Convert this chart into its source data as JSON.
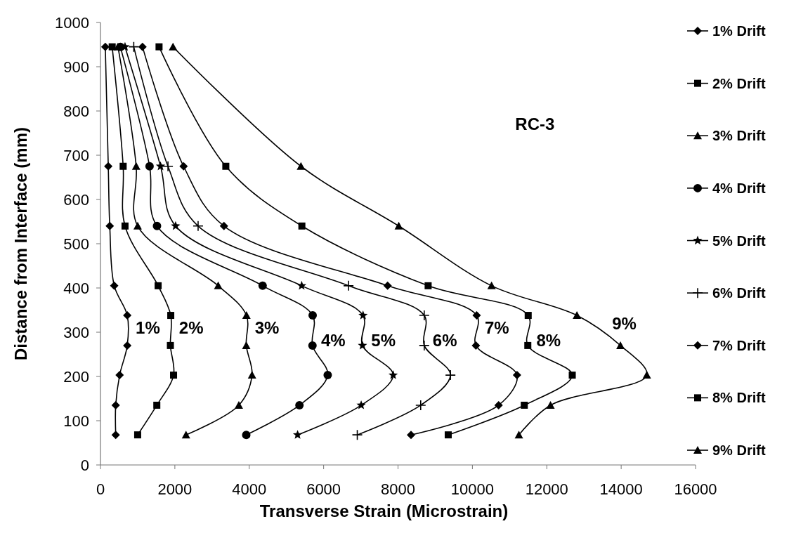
{
  "chart_data": {
    "type": "line",
    "xlabel": "Transverse Strain (Microstrain)",
    "ylabel": "Distance from Interface (mm)",
    "xlim": [
      0,
      16000
    ],
    "xticks": [
      0,
      2000,
      4000,
      6000,
      8000,
      10000,
      12000,
      14000,
      16000
    ],
    "ylim": [
      0,
      1000
    ],
    "yticks": [
      0,
      100,
      200,
      300,
      400,
      500,
      600,
      700,
      800,
      900,
      1000
    ],
    "grid": false,
    "legend": "right",
    "line_style": "solid",
    "series": [
      {
        "name": "1% Drift",
        "color": "#000000",
        "marker": "diamond",
        "x": [
          130,
          210,
          250,
          370,
          720,
          720,
          515,
          410,
          410
        ],
        "values": [
          945,
          675,
          540,
          405,
          338,
          270,
          203,
          135,
          68
        ]
      },
      {
        "name": "2% Drift",
        "color": "#000000",
        "marker": "square",
        "x": [
          315,
          610,
          660,
          1550,
          1890,
          1880,
          1965,
          1515,
          1000
        ],
        "values": [
          945,
          675,
          540,
          405,
          338,
          270,
          203,
          135,
          68
        ]
      },
      {
        "name": "3% Drift",
        "color": "#000000",
        "marker": "triangle",
        "x": [
          470,
          960,
          1000,
          3165,
          3925,
          3920,
          4075,
          3720,
          2300
        ],
        "values": [
          945,
          675,
          540,
          405,
          338,
          270,
          203,
          135,
          68
        ]
      },
      {
        "name": "4% Drift",
        "color": "#000000",
        "marker": "circle",
        "x": [
          535,
          1320,
          1520,
          4360,
          5705,
          5700,
          6110,
          5350,
          3920
        ],
        "values": [
          945,
          675,
          540,
          405,
          338,
          270,
          203,
          135,
          68
        ]
      },
      {
        "name": "5% Drift",
        "color": "#000000",
        "marker": "star",
        "x": [
          660,
          1615,
          2020,
          5410,
          7060,
          7045,
          7870,
          7010,
          5300
        ],
        "values": [
          945,
          675,
          540,
          405,
          338,
          270,
          203,
          135,
          68
        ]
      },
      {
        "name": "6% Drift",
        "color": "#000000",
        "marker": "cross",
        "x": [
          895,
          1815,
          2625,
          6670,
          8705,
          8705,
          9410,
          8610,
          6905
        ],
        "values": [
          945,
          675,
          540,
          405,
          338,
          270,
          203,
          135,
          68
        ]
      },
      {
        "name": "7% Drift",
        "color": "#000000",
        "marker": "diamond",
        "x": [
          1130,
          2235,
          3320,
          7720,
          10115,
          10095,
          11200,
          10705,
          8350
        ],
        "values": [
          945,
          675,
          540,
          405,
          338,
          270,
          203,
          135,
          68
        ]
      },
      {
        "name": "8% Drift",
        "color": "#000000",
        "marker": "square",
        "x": [
          1575,
          3370,
          5415,
          8810,
          11500,
          11490,
          12685,
          11395,
          9350
        ],
        "values": [
          945,
          675,
          540,
          405,
          338,
          270,
          203,
          135,
          68
        ]
      },
      {
        "name": "9% Drift",
        "color": "#000000",
        "marker": "triangle",
        "x": [
          1950,
          5390,
          8020,
          10515,
          12810,
          13980,
          14690,
          12100,
          11250
        ],
        "values": [
          945,
          675,
          540,
          405,
          338,
          270,
          203,
          135,
          68
        ]
      }
    ],
    "annotations": [
      "RC-3",
      "1%",
      "2%",
      "3%",
      "4%",
      "5%",
      "6%",
      "7%",
      "8%",
      "9%"
    ]
  }
}
